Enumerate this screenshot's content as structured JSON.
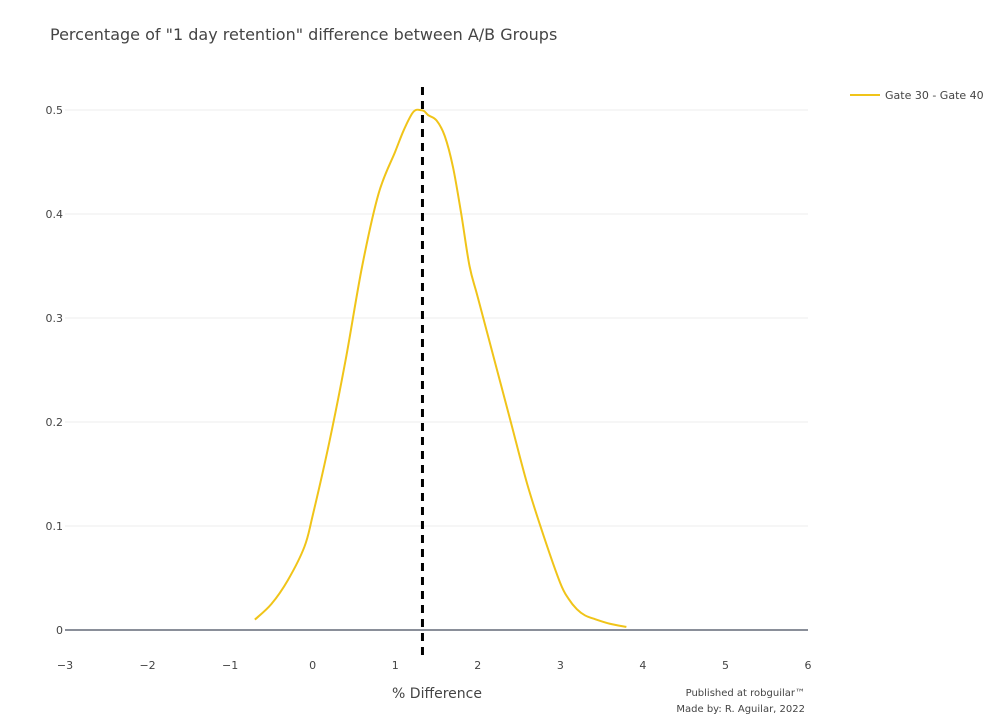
{
  "chart_data": {
    "type": "line",
    "title": "Percentage of \"1 day retention\" difference between A/B Groups",
    "xlabel": "% Difference",
    "ylabel": "",
    "xlim": [
      -3,
      6
    ],
    "ylim": [
      0,
      0.5
    ],
    "x_ticks": [
      "−3",
      "−2",
      "−1",
      "0",
      "1",
      "2",
      "3",
      "4",
      "5",
      "6"
    ],
    "y_ticks": [
      "0",
      "0.1",
      "0.2",
      "0.3",
      "0.4",
      "0.5"
    ],
    "grid": true,
    "legend_position": "top-right",
    "series": [
      {
        "name": "Gate 30 - Gate 40",
        "color": "#f0c419",
        "x": [
          -0.7,
          -0.5,
          -0.3,
          -0.1,
          0.0,
          0.2,
          0.4,
          0.6,
          0.8,
          1.0,
          1.1,
          1.2,
          1.25,
          1.3,
          1.35,
          1.4,
          1.5,
          1.6,
          1.7,
          1.8,
          1.9,
          2.0,
          2.2,
          2.4,
          2.6,
          2.8,
          3.0,
          3.1,
          3.2,
          3.3,
          3.4,
          3.6,
          3.8
        ],
        "y": [
          0.01,
          0.025,
          0.048,
          0.08,
          0.11,
          0.18,
          0.26,
          0.35,
          0.42,
          0.46,
          0.48,
          0.496,
          0.5,
          0.5,
          0.499,
          0.495,
          0.49,
          0.475,
          0.445,
          0.4,
          0.35,
          0.32,
          0.26,
          0.2,
          0.14,
          0.09,
          0.045,
          0.03,
          0.02,
          0.014,
          0.011,
          0.006,
          0.003
        ]
      }
    ],
    "mean_line": {
      "x": 1.33,
      "color": "#000000"
    },
    "annotations": [
      {
        "text": "Published at robguilar™"
      },
      {
        "text": "Made by:  R. Aguilar, 2022"
      }
    ]
  }
}
